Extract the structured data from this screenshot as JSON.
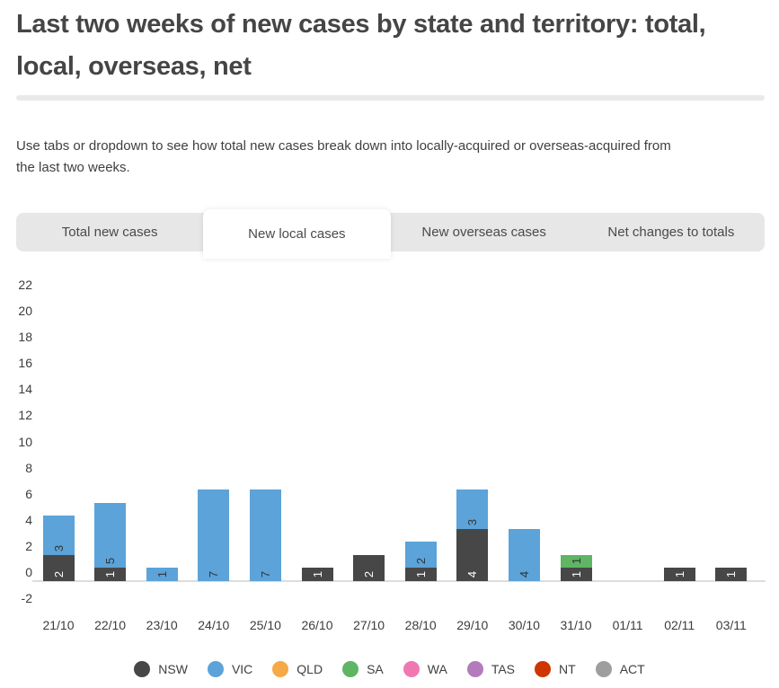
{
  "header": {
    "title": "Last two weeks of new cases by state and territory: total,\nlocal, overseas, net",
    "subtitle": "Use tabs or dropdown to see how total new cases break down into locally-acquired or overseas-acquired from\nthe last two weeks."
  },
  "tabs": {
    "items": [
      "Total new cases",
      "New local cases",
      "New overseas cases",
      "Net changes to totals"
    ],
    "active_index": 1
  },
  "chart_data": {
    "type": "bar",
    "stacked": true,
    "categories": [
      "21/10",
      "22/10",
      "23/10",
      "24/10",
      "25/10",
      "26/10",
      "27/10",
      "28/10",
      "29/10",
      "30/10",
      "31/10",
      "01/11",
      "02/11",
      "03/11"
    ],
    "series": [
      {
        "name": "NSW",
        "color": "#474747",
        "label_color": "#ffffff",
        "values": [
          2,
          1,
          0,
          0,
          0,
          1,
          2,
          1,
          4,
          0,
          1,
          0,
          1,
          1
        ]
      },
      {
        "name": "VIC",
        "color": "#5ba3d9",
        "label_color": "#333333",
        "values": [
          3,
          5,
          1,
          7,
          7,
          0,
          0,
          2,
          3,
          4,
          0,
          0,
          0,
          0
        ]
      },
      {
        "name": "QLD",
        "color": "#f5a947",
        "label_color": "#333333",
        "values": [
          0,
          0,
          0,
          0,
          0,
          0,
          0,
          0,
          0,
          0,
          0,
          0,
          0,
          0
        ]
      },
      {
        "name": "SA",
        "color": "#5eb564",
        "label_color": "#333333",
        "values": [
          0,
          0,
          0,
          0,
          0,
          0,
          0,
          0,
          0,
          0,
          1,
          0,
          0,
          0
        ]
      },
      {
        "name": "WA",
        "color": "#f078b2",
        "label_color": "#333333",
        "values": [
          0,
          0,
          0,
          0,
          0,
          0,
          0,
          0,
          0,
          0,
          0,
          0,
          0,
          0
        ]
      },
      {
        "name": "TAS",
        "color": "#b37bbc",
        "label_color": "#333333",
        "values": [
          0,
          0,
          0,
          0,
          0,
          0,
          0,
          0,
          0,
          0,
          0,
          0,
          0,
          0
        ]
      },
      {
        "name": "NT",
        "color": "#cf3500",
        "label_color": "#ffffff",
        "values": [
          0,
          0,
          0,
          0,
          0,
          0,
          0,
          0,
          0,
          0,
          0,
          0,
          0,
          0
        ]
      },
      {
        "name": "ACT",
        "color": "#9e9e9e",
        "label_color": "#333333",
        "values": [
          0,
          0,
          0,
          0,
          0,
          0,
          0,
          0,
          0,
          0,
          0,
          0,
          0,
          0
        ]
      }
    ],
    "ylim": [
      -2,
      22
    ],
    "ytick_step": 2,
    "grid": false,
    "legend_position": "bottom",
    "value_labels": "inside-bottom, rotated -90deg"
  }
}
